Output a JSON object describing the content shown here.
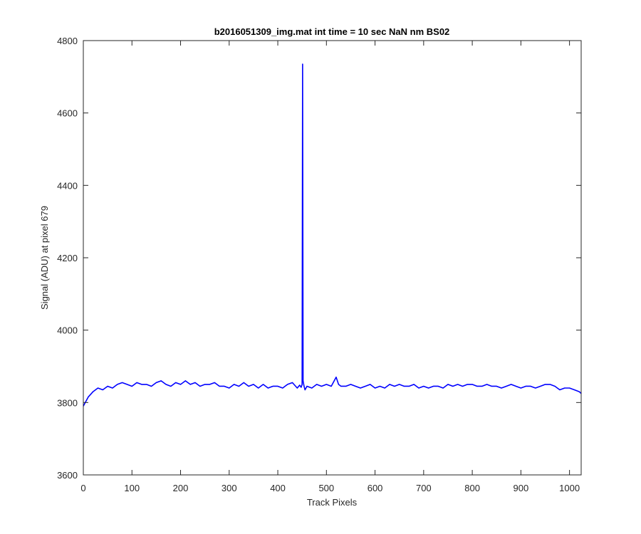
{
  "chart_data": {
    "type": "line",
    "title": "b2016051309_img.mat int time = 10 sec  NaN nm BS02",
    "xlabel": "Track Pixels",
    "ylabel": "Signal (ADU) at pixel 679",
    "xlim": [
      0,
      1024
    ],
    "ylim": [
      3600,
      4800
    ],
    "xticks": [
      0,
      100,
      200,
      300,
      400,
      500,
      600,
      700,
      800,
      900,
      1000
    ],
    "yticks": [
      3600,
      3800,
      4000,
      4200,
      4400,
      4600,
      4800
    ],
    "grid": false,
    "legend": "none",
    "series": [
      {
        "color": "#0000ff",
        "x": [
          0,
          10,
          20,
          30,
          40,
          50,
          60,
          70,
          80,
          90,
          100,
          110,
          120,
          130,
          140,
          150,
          160,
          170,
          180,
          190,
          200,
          210,
          220,
          230,
          240,
          250,
          260,
          270,
          280,
          290,
          300,
          310,
          320,
          330,
          340,
          350,
          360,
          370,
          380,
          390,
          400,
          410,
          420,
          430,
          440,
          445,
          448,
          450,
          451,
          452,
          454,
          456,
          460,
          470,
          480,
          490,
          500,
          510,
          520,
          525,
          530,
          540,
          550,
          560,
          570,
          580,
          590,
          600,
          610,
          620,
          630,
          640,
          650,
          660,
          670,
          680,
          690,
          700,
          710,
          720,
          730,
          740,
          750,
          760,
          770,
          780,
          790,
          800,
          810,
          820,
          830,
          840,
          850,
          860,
          870,
          880,
          890,
          900,
          910,
          920,
          930,
          940,
          950,
          960,
          970,
          980,
          990,
          1000,
          1010,
          1020,
          1024
        ],
        "values": [
          3790,
          3815,
          3830,
          3840,
          3835,
          3845,
          3840,
          3850,
          3855,
          3850,
          3845,
          3855,
          3850,
          3850,
          3845,
          3855,
          3860,
          3850,
          3845,
          3855,
          3850,
          3860,
          3850,
          3855,
          3845,
          3850,
          3850,
          3855,
          3845,
          3845,
          3840,
          3850,
          3845,
          3855,
          3845,
          3850,
          3840,
          3850,
          3840,
          3845,
          3845,
          3840,
          3850,
          3855,
          3840,
          3848,
          3842,
          3850,
          4735,
          3860,
          3845,
          3835,
          3845,
          3840,
          3850,
          3845,
          3850,
          3845,
          3870,
          3850,
          3845,
          3845,
          3850,
          3845,
          3840,
          3845,
          3850,
          3840,
          3845,
          3840,
          3850,
          3845,
          3850,
          3845,
          3845,
          3850,
          3840,
          3845,
          3840,
          3845,
          3845,
          3840,
          3850,
          3845,
          3850,
          3845,
          3850,
          3850,
          3845,
          3845,
          3850,
          3845,
          3845,
          3840,
          3845,
          3850,
          3845,
          3840,
          3845,
          3845,
          3840,
          3845,
          3850,
          3850,
          3845,
          3835,
          3840,
          3840,
          3835,
          3830,
          3825
        ]
      }
    ]
  }
}
